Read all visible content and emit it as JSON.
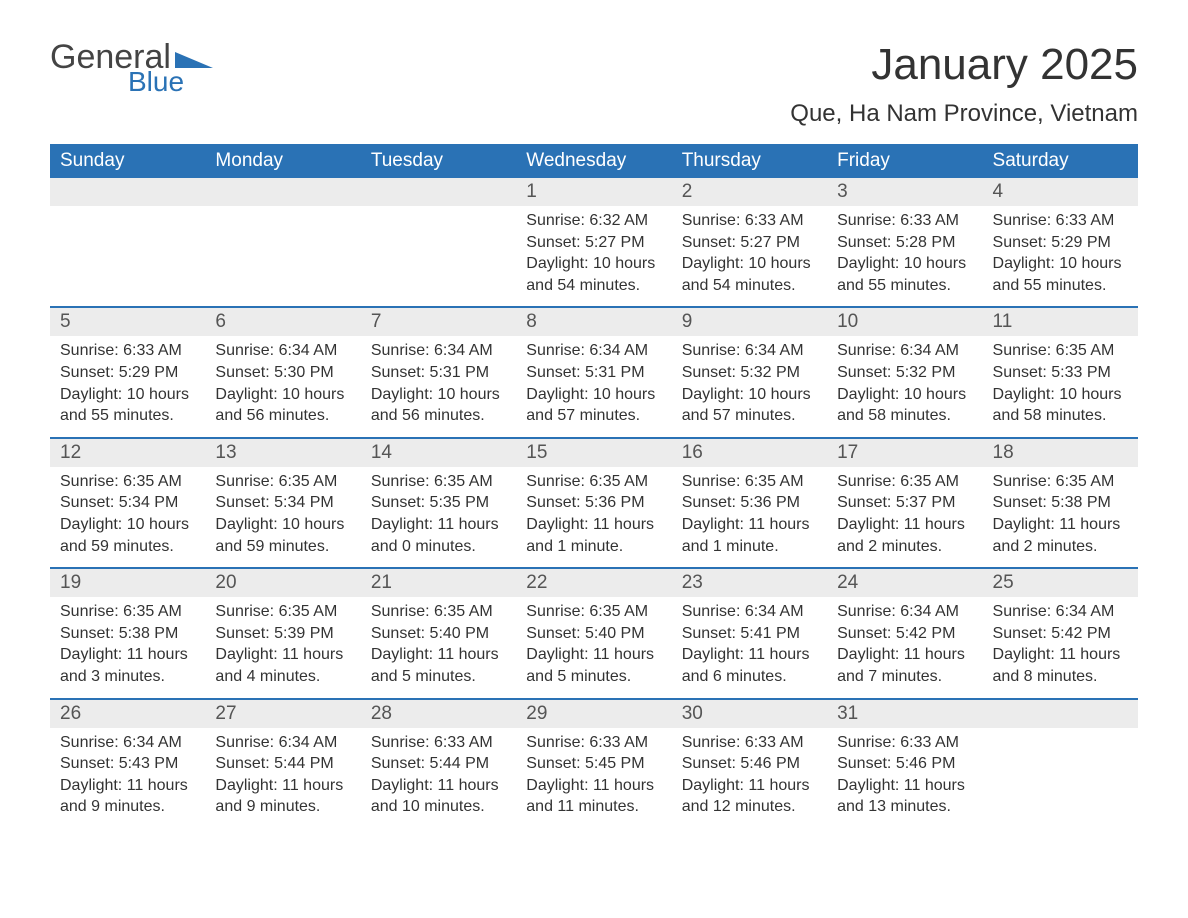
{
  "logo": {
    "text1": "General",
    "text2": "Blue",
    "triangle_color": "#2a72b5"
  },
  "title": "January 2025",
  "location": "Que, Ha Nam Province, Vietnam",
  "colors": {
    "header_bg": "#2a72b5",
    "header_text": "#ffffff",
    "daynum_bg": "#ececec",
    "daynum_border": "#2a72b5",
    "body_text": "#333333"
  },
  "day_headers": [
    "Sunday",
    "Monday",
    "Tuesday",
    "Wednesday",
    "Thursday",
    "Friday",
    "Saturday"
  ],
  "weeks": [
    [
      null,
      null,
      null,
      {
        "n": "1",
        "sunrise": "Sunrise: 6:32 AM",
        "sunset": "Sunset: 5:27 PM",
        "daylight": "Daylight: 10 hours and 54 minutes."
      },
      {
        "n": "2",
        "sunrise": "Sunrise: 6:33 AM",
        "sunset": "Sunset: 5:27 PM",
        "daylight": "Daylight: 10 hours and 54 minutes."
      },
      {
        "n": "3",
        "sunrise": "Sunrise: 6:33 AM",
        "sunset": "Sunset: 5:28 PM",
        "daylight": "Daylight: 10 hours and 55 minutes."
      },
      {
        "n": "4",
        "sunrise": "Sunrise: 6:33 AM",
        "sunset": "Sunset: 5:29 PM",
        "daylight": "Daylight: 10 hours and 55 minutes."
      }
    ],
    [
      {
        "n": "5",
        "sunrise": "Sunrise: 6:33 AM",
        "sunset": "Sunset: 5:29 PM",
        "daylight": "Daylight: 10 hours and 55 minutes."
      },
      {
        "n": "6",
        "sunrise": "Sunrise: 6:34 AM",
        "sunset": "Sunset: 5:30 PM",
        "daylight": "Daylight: 10 hours and 56 minutes."
      },
      {
        "n": "7",
        "sunrise": "Sunrise: 6:34 AM",
        "sunset": "Sunset: 5:31 PM",
        "daylight": "Daylight: 10 hours and 56 minutes."
      },
      {
        "n": "8",
        "sunrise": "Sunrise: 6:34 AM",
        "sunset": "Sunset: 5:31 PM",
        "daylight": "Daylight: 10 hours and 57 minutes."
      },
      {
        "n": "9",
        "sunrise": "Sunrise: 6:34 AM",
        "sunset": "Sunset: 5:32 PM",
        "daylight": "Daylight: 10 hours and 57 minutes."
      },
      {
        "n": "10",
        "sunrise": "Sunrise: 6:34 AM",
        "sunset": "Sunset: 5:32 PM",
        "daylight": "Daylight: 10 hours and 58 minutes."
      },
      {
        "n": "11",
        "sunrise": "Sunrise: 6:35 AM",
        "sunset": "Sunset: 5:33 PM",
        "daylight": "Daylight: 10 hours and 58 minutes."
      }
    ],
    [
      {
        "n": "12",
        "sunrise": "Sunrise: 6:35 AM",
        "sunset": "Sunset: 5:34 PM",
        "daylight": "Daylight: 10 hours and 59 minutes."
      },
      {
        "n": "13",
        "sunrise": "Sunrise: 6:35 AM",
        "sunset": "Sunset: 5:34 PM",
        "daylight": "Daylight: 10 hours and 59 minutes."
      },
      {
        "n": "14",
        "sunrise": "Sunrise: 6:35 AM",
        "sunset": "Sunset: 5:35 PM",
        "daylight": "Daylight: 11 hours and 0 minutes."
      },
      {
        "n": "15",
        "sunrise": "Sunrise: 6:35 AM",
        "sunset": "Sunset: 5:36 PM",
        "daylight": "Daylight: 11 hours and 1 minute."
      },
      {
        "n": "16",
        "sunrise": "Sunrise: 6:35 AM",
        "sunset": "Sunset: 5:36 PM",
        "daylight": "Daylight: 11 hours and 1 minute."
      },
      {
        "n": "17",
        "sunrise": "Sunrise: 6:35 AM",
        "sunset": "Sunset: 5:37 PM",
        "daylight": "Daylight: 11 hours and 2 minutes."
      },
      {
        "n": "18",
        "sunrise": "Sunrise: 6:35 AM",
        "sunset": "Sunset: 5:38 PM",
        "daylight": "Daylight: 11 hours and 2 minutes."
      }
    ],
    [
      {
        "n": "19",
        "sunrise": "Sunrise: 6:35 AM",
        "sunset": "Sunset: 5:38 PM",
        "daylight": "Daylight: 11 hours and 3 minutes."
      },
      {
        "n": "20",
        "sunrise": "Sunrise: 6:35 AM",
        "sunset": "Sunset: 5:39 PM",
        "daylight": "Daylight: 11 hours and 4 minutes."
      },
      {
        "n": "21",
        "sunrise": "Sunrise: 6:35 AM",
        "sunset": "Sunset: 5:40 PM",
        "daylight": "Daylight: 11 hours and 5 minutes."
      },
      {
        "n": "22",
        "sunrise": "Sunrise: 6:35 AM",
        "sunset": "Sunset: 5:40 PM",
        "daylight": "Daylight: 11 hours and 5 minutes."
      },
      {
        "n": "23",
        "sunrise": "Sunrise: 6:34 AM",
        "sunset": "Sunset: 5:41 PM",
        "daylight": "Daylight: 11 hours and 6 minutes."
      },
      {
        "n": "24",
        "sunrise": "Sunrise: 6:34 AM",
        "sunset": "Sunset: 5:42 PM",
        "daylight": "Daylight: 11 hours and 7 minutes."
      },
      {
        "n": "25",
        "sunrise": "Sunrise: 6:34 AM",
        "sunset": "Sunset: 5:42 PM",
        "daylight": "Daylight: 11 hours and 8 minutes."
      }
    ],
    [
      {
        "n": "26",
        "sunrise": "Sunrise: 6:34 AM",
        "sunset": "Sunset: 5:43 PM",
        "daylight": "Daylight: 11 hours and 9 minutes."
      },
      {
        "n": "27",
        "sunrise": "Sunrise: 6:34 AM",
        "sunset": "Sunset: 5:44 PM",
        "daylight": "Daylight: 11 hours and 9 minutes."
      },
      {
        "n": "28",
        "sunrise": "Sunrise: 6:33 AM",
        "sunset": "Sunset: 5:44 PM",
        "daylight": "Daylight: 11 hours and 10 minutes."
      },
      {
        "n": "29",
        "sunrise": "Sunrise: 6:33 AM",
        "sunset": "Sunset: 5:45 PM",
        "daylight": "Daylight: 11 hours and 11 minutes."
      },
      {
        "n": "30",
        "sunrise": "Sunrise: 6:33 AM",
        "sunset": "Sunset: 5:46 PM",
        "daylight": "Daylight: 11 hours and 12 minutes."
      },
      {
        "n": "31",
        "sunrise": "Sunrise: 6:33 AM",
        "sunset": "Sunset: 5:46 PM",
        "daylight": "Daylight: 11 hours and 13 minutes."
      },
      null
    ]
  ]
}
